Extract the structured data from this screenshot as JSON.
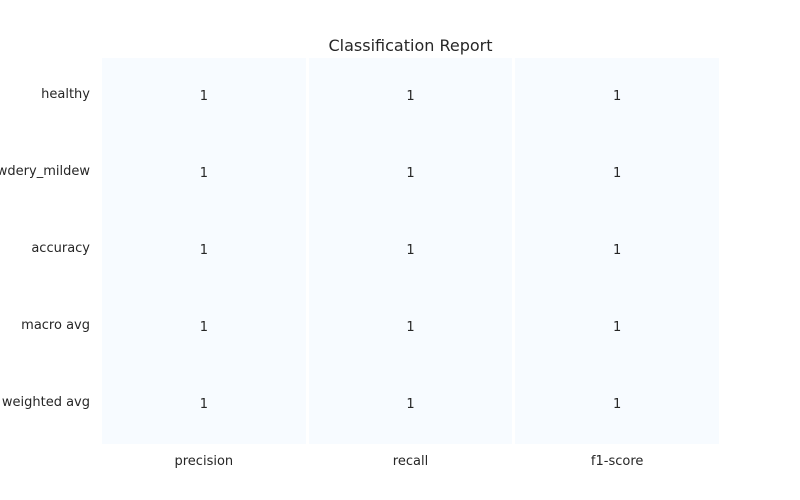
{
  "chart_data": {
    "type": "heatmap",
    "title": "Classification Report",
    "xlabel": "",
    "ylabel": "",
    "columns": [
      "precision",
      "recall",
      "f1-score"
    ],
    "rows": [
      "healthy",
      "powdery_mildew",
      "accuracy",
      "macro avg",
      "weighted avg"
    ],
    "values": [
      [
        1,
        1,
        1
      ],
      [
        1,
        1,
        1
      ],
      [
        1,
        1,
        1
      ],
      [
        1,
        1,
        1
      ],
      [
        1,
        1,
        1
      ]
    ],
    "cell_labels": [
      [
        "1",
        "1",
        "1"
      ],
      [
        "1",
        "1",
        "1"
      ],
      [
        "1",
        "1",
        "1"
      ],
      [
        "1",
        "1",
        "1"
      ],
      [
        "1",
        "1",
        "1"
      ]
    ],
    "colormap": "Blues",
    "cell_color": "#f7fbff",
    "grid_color": "#ffffff",
    "colorbar": false
  }
}
